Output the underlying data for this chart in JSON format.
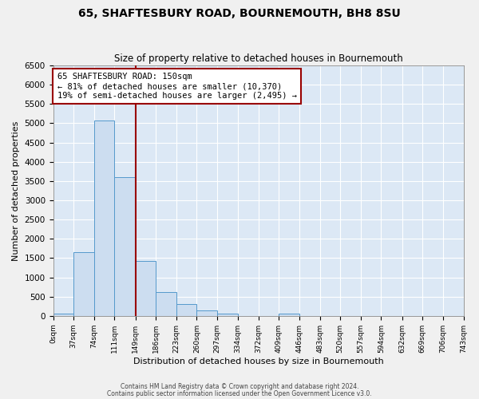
{
  "title": "65, SHAFTESBURY ROAD, BOURNEMOUTH, BH8 8SU",
  "subtitle": "Size of property relative to detached houses in Bournemouth",
  "xlabel": "Distribution of detached houses by size in Bournemouth",
  "ylabel": "Number of detached properties",
  "bar_color": "#ccddf0",
  "bar_edge_color": "#5599cc",
  "background_color": "#dce8f5",
  "grid_color": "#ffffff",
  "fig_facecolor": "#f0f0f0",
  "ylim": [
    0,
    6500
  ],
  "yticks": [
    0,
    500,
    1000,
    1500,
    2000,
    2500,
    3000,
    3500,
    4000,
    4500,
    5000,
    5500,
    6000,
    6500
  ],
  "bin_edges": [
    0,
    37,
    74,
    111,
    149,
    186,
    223,
    260,
    297,
    334,
    372,
    409,
    446,
    483,
    520,
    557,
    594,
    632,
    669,
    706,
    743
  ],
  "bin_labels": [
    "0sqm",
    "37sqm",
    "74sqm",
    "111sqm",
    "149sqm",
    "186sqm",
    "223sqm",
    "260sqm",
    "297sqm",
    "334sqm",
    "372sqm",
    "409sqm",
    "446sqm",
    "483sqm",
    "520sqm",
    "557sqm",
    "594sqm",
    "632sqm",
    "669sqm",
    "706sqm",
    "743sqm"
  ],
  "bar_heights": [
    65,
    1650,
    5080,
    3600,
    1420,
    620,
    300,
    145,
    60,
    0,
    0,
    55,
    0,
    0,
    0,
    0,
    0,
    0,
    0,
    0
  ],
  "property_line_x": 149,
  "property_line_color": "#990000",
  "annotation_box_color": "#990000",
  "annotation_text_line1": "65 SHAFTESBURY ROAD: 150sqm",
  "annotation_text_line2": "← 81% of detached houses are smaller (10,370)",
  "annotation_text_line3": "19% of semi-detached houses are larger (2,495) →",
  "footer_line1": "Contains HM Land Registry data © Crown copyright and database right 2024.",
  "footer_line2": "Contains public sector information licensed under the Open Government Licence v3.0."
}
